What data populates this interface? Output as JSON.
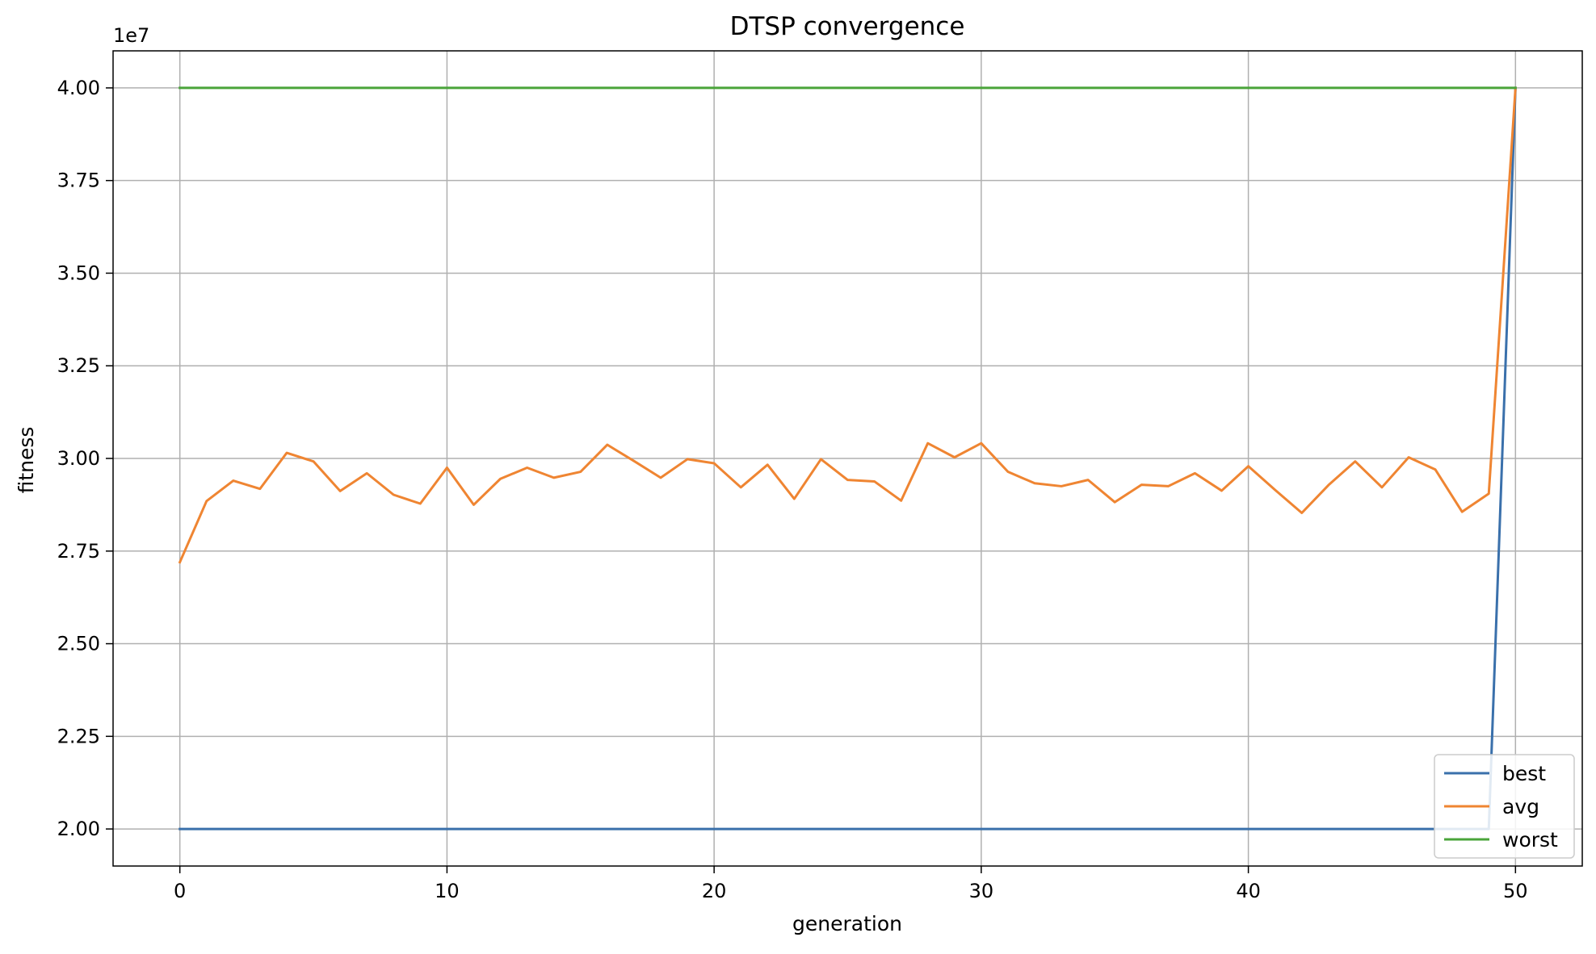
{
  "chart_data": {
    "type": "line",
    "title": "DTSP convergence",
    "xlabel": "generation",
    "ylabel": "fitness",
    "y_offset_label": "1e7",
    "y_scale_factor": 10000000,
    "xlim": [
      -2.5,
      52.5
    ],
    "ylim": [
      19000000,
      41000000
    ],
    "xticks": [
      0,
      10,
      20,
      30,
      40,
      50
    ],
    "xtick_labels": [
      "0",
      "10",
      "20",
      "30",
      "40",
      "50"
    ],
    "yticks": [
      20000000,
      22500000,
      25000000,
      27500000,
      30000000,
      32500000,
      35000000,
      37500000,
      40000000
    ],
    "ytick_labels": [
      "2.00",
      "2.25",
      "2.50",
      "2.75",
      "3.00",
      "3.25",
      "3.50",
      "3.75",
      "4.00"
    ],
    "grid": true,
    "legend_position": "lower-right",
    "x": [
      0,
      1,
      2,
      3,
      4,
      5,
      6,
      7,
      8,
      9,
      10,
      11,
      12,
      13,
      14,
      15,
      16,
      17,
      18,
      19,
      20,
      21,
      22,
      23,
      24,
      25,
      26,
      27,
      28,
      29,
      30,
      31,
      32,
      33,
      34,
      35,
      36,
      37,
      38,
      39,
      40,
      41,
      42,
      43,
      44,
      45,
      46,
      47,
      48,
      49,
      50
    ],
    "series": [
      {
        "name": "best",
        "color": "#3a70ab",
        "values": [
          20000000,
          20000000,
          20000000,
          20000000,
          20000000,
          20000000,
          20000000,
          20000000,
          20000000,
          20000000,
          20000000,
          20000000,
          20000000,
          20000000,
          20000000,
          20000000,
          20000000,
          20000000,
          20000000,
          20000000,
          20000000,
          20000000,
          20000000,
          20000000,
          20000000,
          20000000,
          20000000,
          20000000,
          20000000,
          20000000,
          20000000,
          20000000,
          20000000,
          20000000,
          20000000,
          20000000,
          20000000,
          20000000,
          20000000,
          20000000,
          20000000,
          20000000,
          20000000,
          20000000,
          20000000,
          20000000,
          20000000,
          20000000,
          20000000,
          20000000,
          40000000
        ]
      },
      {
        "name": "avg",
        "color": "#ef8532",
        "values": [
          27200000,
          28850000,
          29400000,
          29180000,
          30150000,
          29920000,
          29120000,
          29600000,
          29020000,
          28780000,
          29750000,
          28750000,
          29450000,
          29750000,
          29480000,
          29640000,
          30370000,
          29930000,
          29480000,
          29980000,
          29870000,
          29220000,
          29830000,
          28910000,
          29980000,
          29420000,
          29380000,
          28860000,
          30410000,
          30030000,
          30410000,
          29640000,
          29330000,
          29250000,
          29420000,
          28820000,
          29290000,
          29250000,
          29600000,
          29130000,
          29790000,
          29150000,
          28530000,
          29280000,
          29920000,
          29220000,
          30030000,
          29700000,
          28560000,
          29050000,
          40000000
        ]
      },
      {
        "name": "worst",
        "color": "#4aa43a",
        "values": [
          40000000,
          40000000,
          40000000,
          40000000,
          40000000,
          40000000,
          40000000,
          40000000,
          40000000,
          40000000,
          40000000,
          40000000,
          40000000,
          40000000,
          40000000,
          40000000,
          40000000,
          40000000,
          40000000,
          40000000,
          40000000,
          40000000,
          40000000,
          40000000,
          40000000,
          40000000,
          40000000,
          40000000,
          40000000,
          40000000,
          40000000,
          40000000,
          40000000,
          40000000,
          40000000,
          40000000,
          40000000,
          40000000,
          40000000,
          40000000,
          40000000,
          40000000,
          40000000,
          40000000,
          40000000,
          40000000,
          40000000,
          40000000,
          40000000,
          40000000,
          40000000
        ]
      }
    ]
  }
}
